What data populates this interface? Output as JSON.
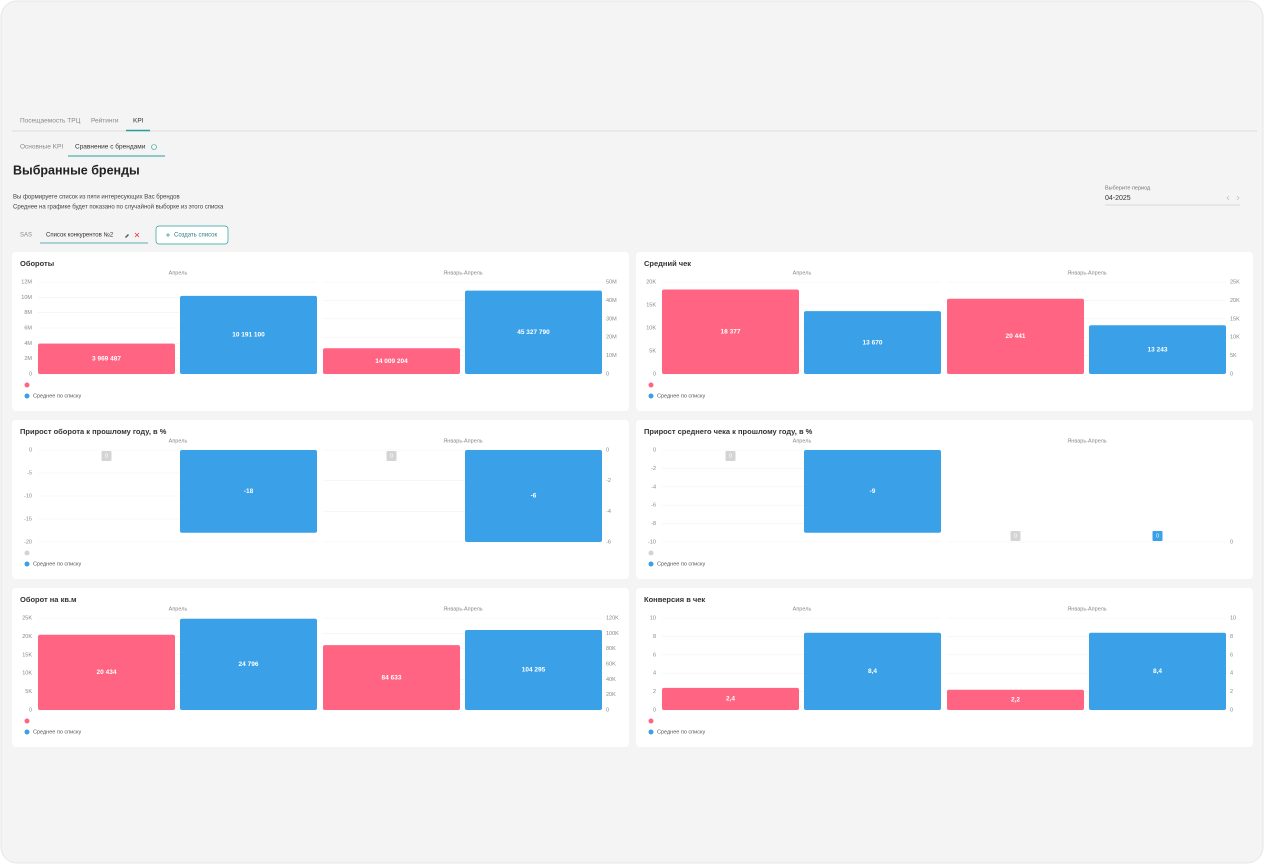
{
  "tabs": [
    "Посещаемость ТРЦ",
    "Рейтинги",
    "KPI"
  ],
  "subtabs": [
    "Основные KPI",
    "Сравнение с брендами"
  ],
  "title": "Выбранные бренды",
  "description": [
    "Вы формируете список из пяти интересующих Вас брендов",
    "Среднее на графике будет показано по случайной выборке из этого списка"
  ],
  "period": {
    "label": "Выберите период",
    "value": "04-2025"
  },
  "lists": {
    "items": [
      "SAS",
      "Список конкурентов №2"
    ],
    "create": "Создать список"
  },
  "chart_data": [
    {
      "type": "bar",
      "title": "Обороты",
      "categories": [
        "Апрель",
        "Январь-Апрель"
      ],
      "grid": true,
      "ylim": [
        0,
        12000000
      ],
      "yticks": [
        0,
        {
          "value": 2000000,
          "label": "2M"
        },
        {
          "value": 4000000,
          "label": "4M"
        },
        {
          "value": 6000000,
          "label": "6M"
        },
        {
          "value": 8000000,
          "label": "8M"
        },
        {
          "value": 10000000,
          "label": "10M"
        },
        {
          "value": 12000000,
          "label": "12M"
        }
      ],
      "y2lim": [
        0,
        50000000
      ],
      "y2ticks": [
        0,
        {
          "value": 10000000,
          "label": "10M"
        },
        {
          "value": 20000000,
          "label": "20M"
        },
        {
          "value": 30000000,
          "label": "30M"
        },
        {
          "value": 40000000,
          "label": "40M"
        },
        {
          "value": 50000000,
          "label": "50M"
        }
      ],
      "series": [
        {
          "color": "#ff6482",
          "values": [
            3969487,
            14009204
          ],
          "value_labels": [
            "3 969 487",
            "14 009 204"
          ]
        },
        {
          "name": "Среднее по списку",
          "color": "#3aa0e8",
          "values": [
            10191100,
            45327790
          ],
          "value_labels": [
            "10 191 100",
            "45 327 790"
          ]
        }
      ]
    },
    {
      "type": "bar",
      "title": "Средний чек",
      "categories": [
        "Апрель",
        "Январь-Апрель"
      ],
      "grid": true,
      "ylim": [
        0,
        20000
      ],
      "yticks": [
        0,
        {
          "value": 5000,
          "label": "5K"
        },
        {
          "value": 10000,
          "label": "10K"
        },
        {
          "value": 15000,
          "label": "15K"
        },
        {
          "value": 20000,
          "label": "20K"
        }
      ],
      "y2lim": [
        0,
        25000
      ],
      "y2ticks": [
        0,
        {
          "value": 5000,
          "label": "5K"
        },
        {
          "value": 10000,
          "label": "10K"
        },
        {
          "value": 15000,
          "label": "15K"
        },
        {
          "value": 20000,
          "label": "20K"
        },
        {
          "value": 25000,
          "label": "25K"
        }
      ],
      "series": [
        {
          "color": "#ff6482",
          "values": [
            18377,
            20441
          ],
          "value_labels": [
            "18 377",
            "20 441"
          ]
        },
        {
          "name": "Среднее по списку",
          "color": "#3aa0e8",
          "values": [
            13670,
            13243
          ],
          "value_labels": [
            "13 670",
            "13 243"
          ]
        }
      ]
    },
    {
      "type": "bar",
      "title": "Прирост оборота к прошлому году, в %",
      "categories": [
        "Апрель",
        "Январь-Апрель"
      ],
      "grid": true,
      "ylim": [
        -20,
        0
      ],
      "yticks": [
        0,
        -5,
        -10,
        -15,
        -20
      ],
      "y2lim": [
        -6,
        0
      ],
      "y2ticks": [
        0,
        -2,
        -4,
        -6
      ],
      "series": [
        {
          "color": "#d4d4d4",
          "values": [
            0,
            0
          ]
        },
        {
          "name": "Среднее по списку",
          "color": "#3aa0e8",
          "values": [
            -18,
            -6
          ]
        }
      ]
    },
    {
      "type": "bar",
      "title": "Прирост среднего чека к прошлому году, в %",
      "categories": [
        "Апрель",
        "Январь-Апрель"
      ],
      "grid": true,
      "ylim": [
        -10,
        0
      ],
      "yticks": [
        0,
        -2,
        -4,
        -6,
        -8,
        -10
      ],
      "y2lim": [
        0,
        1
      ],
      "y2ticks": [
        0
      ],
      "series": [
        {
          "color": "#d4d4d4",
          "values": [
            0,
            0
          ]
        },
        {
          "name": "Среднее по списку",
          "color": "#3aa0e8",
          "values": [
            -9,
            0
          ]
        }
      ]
    },
    {
      "type": "bar",
      "title": "Оборот на кв.м",
      "categories": [
        "Апрель",
        "Январь-Апрель"
      ],
      "grid": true,
      "ylim": [
        0,
        25000
      ],
      "yticks": [
        0,
        {
          "value": 5000,
          "label": "5K"
        },
        {
          "value": 10000,
          "label": "10K"
        },
        {
          "value": 15000,
          "label": "15K"
        },
        {
          "value": 20000,
          "label": "20K"
        },
        {
          "value": 25000,
          "label": "25K"
        }
      ],
      "y2lim": [
        0,
        120000
      ],
      "y2ticks": [
        0,
        {
          "value": 20000,
          "label": "20K"
        },
        {
          "value": 40000,
          "label": "40K"
        },
        {
          "value": 60000,
          "label": "60K"
        },
        {
          "value": 80000,
          "label": "80K"
        },
        {
          "value": 100000,
          "label": "100K"
        },
        {
          "value": 120000,
          "label": "120K"
        }
      ],
      "series": [
        {
          "color": "#ff6482",
          "values": [
            20434,
            84633
          ],
          "value_labels": [
            "20 434",
            "84 633"
          ]
        },
        {
          "name": "Среднее по списку",
          "color": "#3aa0e8",
          "values": [
            24796,
            104295
          ],
          "value_labels": [
            "24 796",
            "104 295"
          ]
        }
      ]
    },
    {
      "type": "bar",
      "title": "Конверсия в чек",
      "categories": [
        "Апрель",
        "Январь-Апрель"
      ],
      "grid": true,
      "ylim": [
        0,
        10
      ],
      "yticks": [
        0,
        2,
        4,
        6,
        8,
        10
      ],
      "y2lim": [
        0,
        10
      ],
      "y2ticks": [
        0,
        2,
        4,
        6,
        8,
        10
      ],
      "series": [
        {
          "color": "#ff6482",
          "values": [
            2.4,
            2.2
          ],
          "value_labels": [
            "2,4",
            "2,2"
          ]
        },
        {
          "name": "Среднее по списку",
          "color": "#3aa0e8",
          "values": [
            8.4,
            8.4
          ],
          "value_labels": [
            "8,4",
            "8,4"
          ]
        }
      ]
    }
  ]
}
